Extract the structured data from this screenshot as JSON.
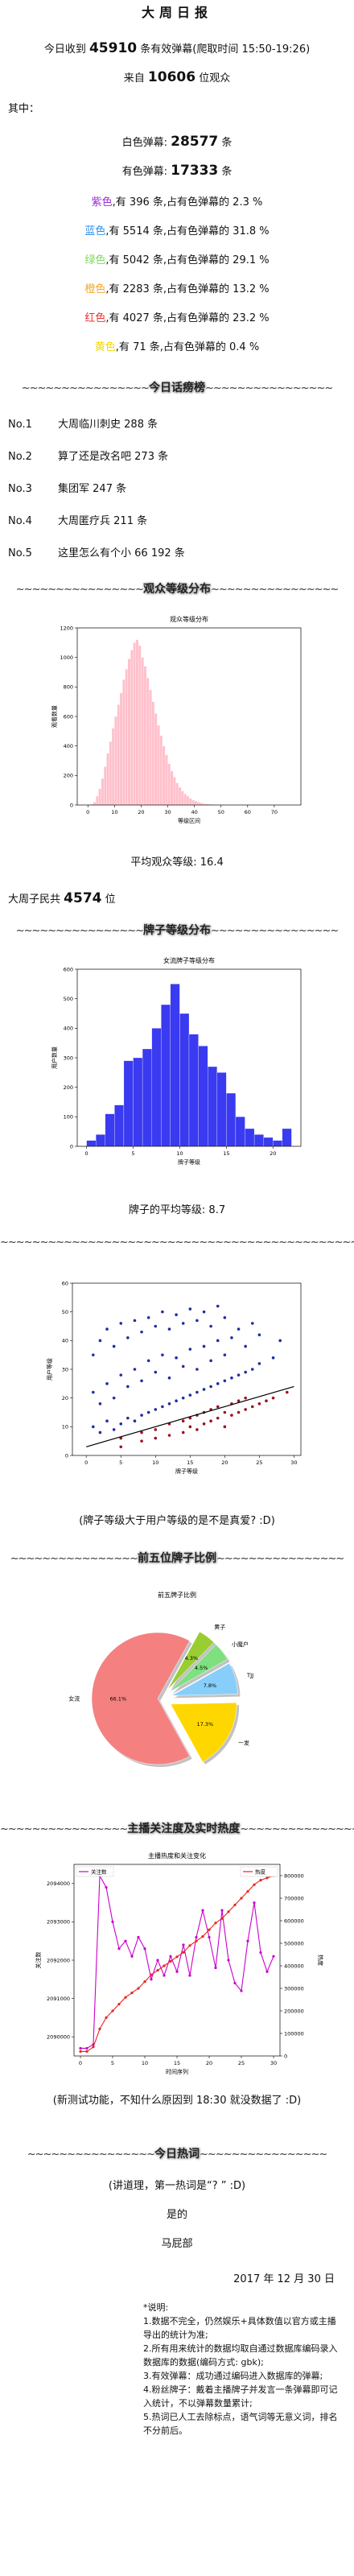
{
  "title": "大周日报",
  "summary": {
    "t1": "今日收到",
    "danmaku": 45910,
    "t2": "条有效弹幕(爬取时间 15:50-19:26)",
    "t3": "来自",
    "viewers": 10606,
    "t4": "位观众"
  },
  "among": "其中：",
  "white": {
    "label": "白色弹幕:",
    "count": 28577,
    "unit": "条"
  },
  "colored": {
    "label": "有色弹幕:",
    "count": 17333,
    "unit": "条"
  },
  "color_text": {
    "t1": ",有",
    "t2": "条,占有色弹幕的",
    "t3": "%"
  },
  "colors": [
    {
      "name": "紫色",
      "color": "#9b30d9",
      "count": 396,
      "pct": 2.3
    },
    {
      "name": "蓝色",
      "color": "#2f8fe8",
      "count": 5514,
      "pct": 31.8
    },
    {
      "name": "绿色",
      "color": "#7fd85c",
      "count": 5042,
      "pct": 29.1
    },
    {
      "name": "橙色",
      "color": "#f5a623",
      "count": 2283,
      "pct": 13.2
    },
    {
      "name": "红色",
      "color": "#f03030",
      "count": 4027,
      "pct": 23.2
    },
    {
      "name": "黄色",
      "color": "#f5d800",
      "count": 71,
      "pct": 0.4
    }
  ],
  "tilde": "~~~~~~~~~~~~~~~~",
  "long_tilde": "~~~~~~~~~~~~~~~~~~~~~~~~~~~~~~~~~~~~~~~~~~~~~~~~~~~~",
  "headings": {
    "talk": "今日话痨榜",
    "level": "观众等级分布",
    "fan": "牌子等级分布",
    "top5": "前五位牌子比例",
    "heat": "主播关注度及实时热度",
    "words": "今日热词"
  },
  "rank_unit": "条",
  "ranks": [
    {
      "no": "No.1",
      "name": "大周临川刺史",
      "count": 288
    },
    {
      "no": "No.2",
      "name": "算了还是改名吧",
      "count": 273
    },
    {
      "no": "No.3",
      "name": "集团军",
      "count": 247
    },
    {
      "no": "No.4",
      "name": "大周匿疗兵",
      "count": 211
    },
    {
      "no": "No.5",
      "name": "这里怎么有个小 66",
      "count": 192
    }
  ],
  "avg_level": {
    "label": "平均观众等级:",
    "value": 16.4
  },
  "subjects": {
    "t1": "大周子民共",
    "count": 4574,
    "t2": "位"
  },
  "fan_avg": {
    "label": "牌子的平均等级:",
    "value": 8.7
  },
  "true_love": "(牌子等级大于用户等级的是不是真爱? :D)",
  "note_test": "(新测试功能，不知什么原因到 18:30 就没数据了 :D)",
  "hot_note": "(讲道理，第一热词是“? ” :D)",
  "yes": "是的",
  "dept": "马屁部",
  "date": "2017 年 12 月 30 日",
  "notes": [
    "*说明:",
    "1.数据不完全，仍然娱乐+具体数值以官方或主播导出的统计为准;",
    "2.所有用来统计的数据均取自通过数据库编码录入数据库的数据(编码方式: gbk);",
    "3.有效弹幕：成功通过编码进入数据库的弹幕;",
    "4.粉丝牌子：戴着主播牌子并发言一条弹幕即可记入统计，不以弹幕数量累计;",
    "5.热词已人工去除标点，语气词等无意义词，排名不分前后。"
  ],
  "chart_data": [
    {
      "type": "histogram",
      "title": "观众等级分布",
      "x_label": "等级区间",
      "y_label": "观看数量",
      "color": "#ffc0cb",
      "bins": [
        0,
        1,
        2,
        3,
        4,
        5,
        6,
        7,
        8,
        9,
        10,
        11,
        12,
        13,
        14,
        15,
        16,
        17,
        18,
        19,
        20,
        21,
        22,
        23,
        24,
        25,
        26,
        27,
        28,
        29,
        30,
        31,
        32,
        33,
        34,
        35,
        36,
        37,
        38,
        39,
        40,
        41,
        42,
        43,
        44,
        45,
        46,
        47,
        48,
        49,
        50
      ],
      "values": [
        0,
        5,
        20,
        60,
        110,
        180,
        260,
        350,
        430,
        520,
        600,
        680,
        760,
        850,
        920,
        990,
        1050,
        1100,
        1120,
        1080,
        1000,
        940,
        860,
        780,
        700,
        620,
        540,
        470,
        400,
        340,
        280,
        230,
        190,
        150,
        120,
        95,
        75,
        60,
        45,
        35,
        28,
        20,
        15,
        10,
        8,
        6,
        4,
        3,
        2,
        1
      ],
      "xlim": [
        -4,
        80
      ],
      "xticks": [
        0,
        10,
        20,
        30,
        40,
        50,
        60,
        70
      ],
      "ylim": [
        0,
        1200
      ],
      "yticks": [
        0,
        200,
        400,
        600,
        800,
        1000,
        1200
      ]
    },
    {
      "type": "histogram",
      "title": "女流牌子等级分布",
      "x_label": "牌子等级",
      "y_label": "用户数量",
      "color": "#3a3af0",
      "bins": [
        0,
        1,
        2,
        3,
        4,
        5,
        6,
        7,
        8,
        9,
        10,
        11,
        12,
        13,
        14,
        15,
        16,
        17,
        18,
        19,
        20,
        21,
        22
      ],
      "values": [
        20,
        40,
        110,
        140,
        290,
        300,
        330,
        400,
        480,
        550,
        450,
        380,
        340,
        270,
        250,
        180,
        100,
        60,
        40,
        30,
        20,
        60
      ],
      "xlim": [
        -1,
        23
      ],
      "xticks": [
        0,
        5,
        10,
        15,
        20
      ],
      "ylim": [
        0,
        600
      ],
      "yticks": [
        0,
        100,
        200,
        300,
        400,
        500,
        600
      ]
    },
    {
      "type": "scatter",
      "x_label": "牌子等级",
      "y_label": "用户等级",
      "series": [
        {
          "color": "#1f2fa0",
          "x": [
            1,
            1,
            1,
            2,
            2,
            2,
            3,
            3,
            3,
            4,
            4,
            4,
            5,
            5,
            5,
            6,
            6,
            6,
            7,
            7,
            7,
            8,
            8,
            8,
            9,
            9,
            9,
            10,
            10,
            10,
            11,
            11,
            11,
            12,
            12,
            12,
            13,
            13,
            13,
            14,
            14,
            14,
            15,
            15,
            15,
            16,
            16,
            16,
            17,
            17,
            17,
            18,
            18,
            18,
            19,
            19,
            19,
            20,
            20,
            20,
            21,
            21,
            22,
            22,
            23,
            23,
            24,
            24,
            25,
            25,
            27,
            28
          ],
          "values": [
            10,
            22,
            35,
            8,
            18,
            40,
            12,
            25,
            44,
            9,
            20,
            38,
            11,
            28,
            46,
            13,
            24,
            41,
            12,
            30,
            47,
            14,
            26,
            43,
            15,
            33,
            48,
            16,
            29,
            45,
            17,
            35,
            50,
            18,
            27,
            44,
            19,
            34,
            49,
            20,
            31,
            46,
            21,
            37,
            51,
            22,
            30,
            47,
            23,
            38,
            50,
            24,
            33,
            45,
            25,
            40,
            52,
            26,
            35,
            48,
            27,
            41,
            28,
            44,
            29,
            38,
            30,
            46,
            32,
            42,
            34,
            40
          ]
        },
        {
          "color": "#a01020",
          "x": [
            5,
            5,
            8,
            8,
            10,
            10,
            12,
            12,
            14,
            14,
            15,
            15,
            16,
            16,
            17,
            17,
            18,
            18,
            19,
            19,
            20,
            20,
            21,
            21,
            22,
            22,
            23,
            23,
            24,
            25,
            26,
            27,
            29
          ],
          "values": [
            3,
            6,
            5,
            8,
            6,
            9,
            7,
            11,
            8,
            12,
            10,
            13,
            9,
            14,
            11,
            15,
            12,
            16,
            13,
            17,
            10,
            15,
            14,
            18,
            15,
            19,
            16,
            20,
            17,
            18,
            19,
            20,
            22
          ]
        }
      ],
      "line": {
        "color": "#000000",
        "x": [
          0,
          30
        ],
        "values": [
          3,
          24
        ]
      },
      "xlim": [
        -2,
        31
      ],
      "xticks": [
        0,
        5,
        10,
        15,
        20,
        25,
        30
      ],
      "ylim": [
        0,
        60
      ],
      "yticks": [
        0,
        10,
        20,
        30,
        40,
        50,
        60
      ]
    },
    {
      "type": "pie",
      "title": "前五牌子比例",
      "categories": [
        "女流",
        "黄子",
        "小魔户",
        "TJJ",
        "一发"
      ],
      "values": [
        66.1,
        4.3,
        4.5,
        7.8,
        17.3
      ],
      "value_labels": [
        "66.1%",
        "4.3%",
        "4.5%",
        "7.8%",
        "17.3%"
      ],
      "colors": [
        "#f48080",
        "#9acd32",
        "#7ee07e",
        "#87cefa",
        "#ffd700"
      ]
    },
    {
      "type": "line",
      "title": "主播热度和关注变化",
      "x_label": "时间序列",
      "y_label": "关注数",
      "y2_label": "热度",
      "x": [
        0,
        1,
        2,
        3,
        4,
        5,
        6,
        7,
        8,
        9,
        10,
        11,
        12,
        13,
        14,
        15,
        16,
        17,
        18,
        19,
        20,
        21,
        22,
        23,
        24,
        25,
        26,
        27,
        28,
        29,
        30
      ],
      "series": [
        {
          "name": "关注数",
          "color": "#cc00cc",
          "values": [
            2089700,
            2089700,
            2089800,
            2094200,
            2093900,
            2093000,
            2092300,
            2092500,
            2092100,
            2092600,
            2092300,
            2091500,
            2092000,
            2091600,
            2092100,
            2091700,
            2092400,
            2091600,
            2092600,
            2093300,
            2092600,
            2091800,
            2093300,
            2092000,
            2091400,
            2091200,
            2092500,
            2093500,
            2092200,
            2091700,
            2092100
          ]
        },
        {
          "name": "热度",
          "color": "#e8251f",
          "axis": "y2",
          "values": [
            20000,
            20000,
            40000,
            120000,
            170000,
            200000,
            230000,
            260000,
            280000,
            300000,
            330000,
            360000,
            380000,
            400000,
            420000,
            440000,
            460000,
            490000,
            510000,
            530000,
            560000,
            590000,
            610000,
            640000,
            670000,
            700000,
            730000,
            760000,
            780000,
            790000,
            800000
          ]
        }
      ],
      "xlim": [
        -1,
        31
      ],
      "xticks": [
        0,
        5,
        10,
        15,
        20,
        25,
        30
      ],
      "ylim": [
        2089500,
        2094500
      ],
      "yticks": [
        2090000,
        2091000,
        2092000,
        2093000,
        2094000
      ],
      "y2lim": [
        0,
        850000
      ],
      "y2ticks": [
        0,
        100000,
        200000,
        300000,
        400000,
        500000,
        600000,
        700000,
        800000
      ]
    }
  ]
}
